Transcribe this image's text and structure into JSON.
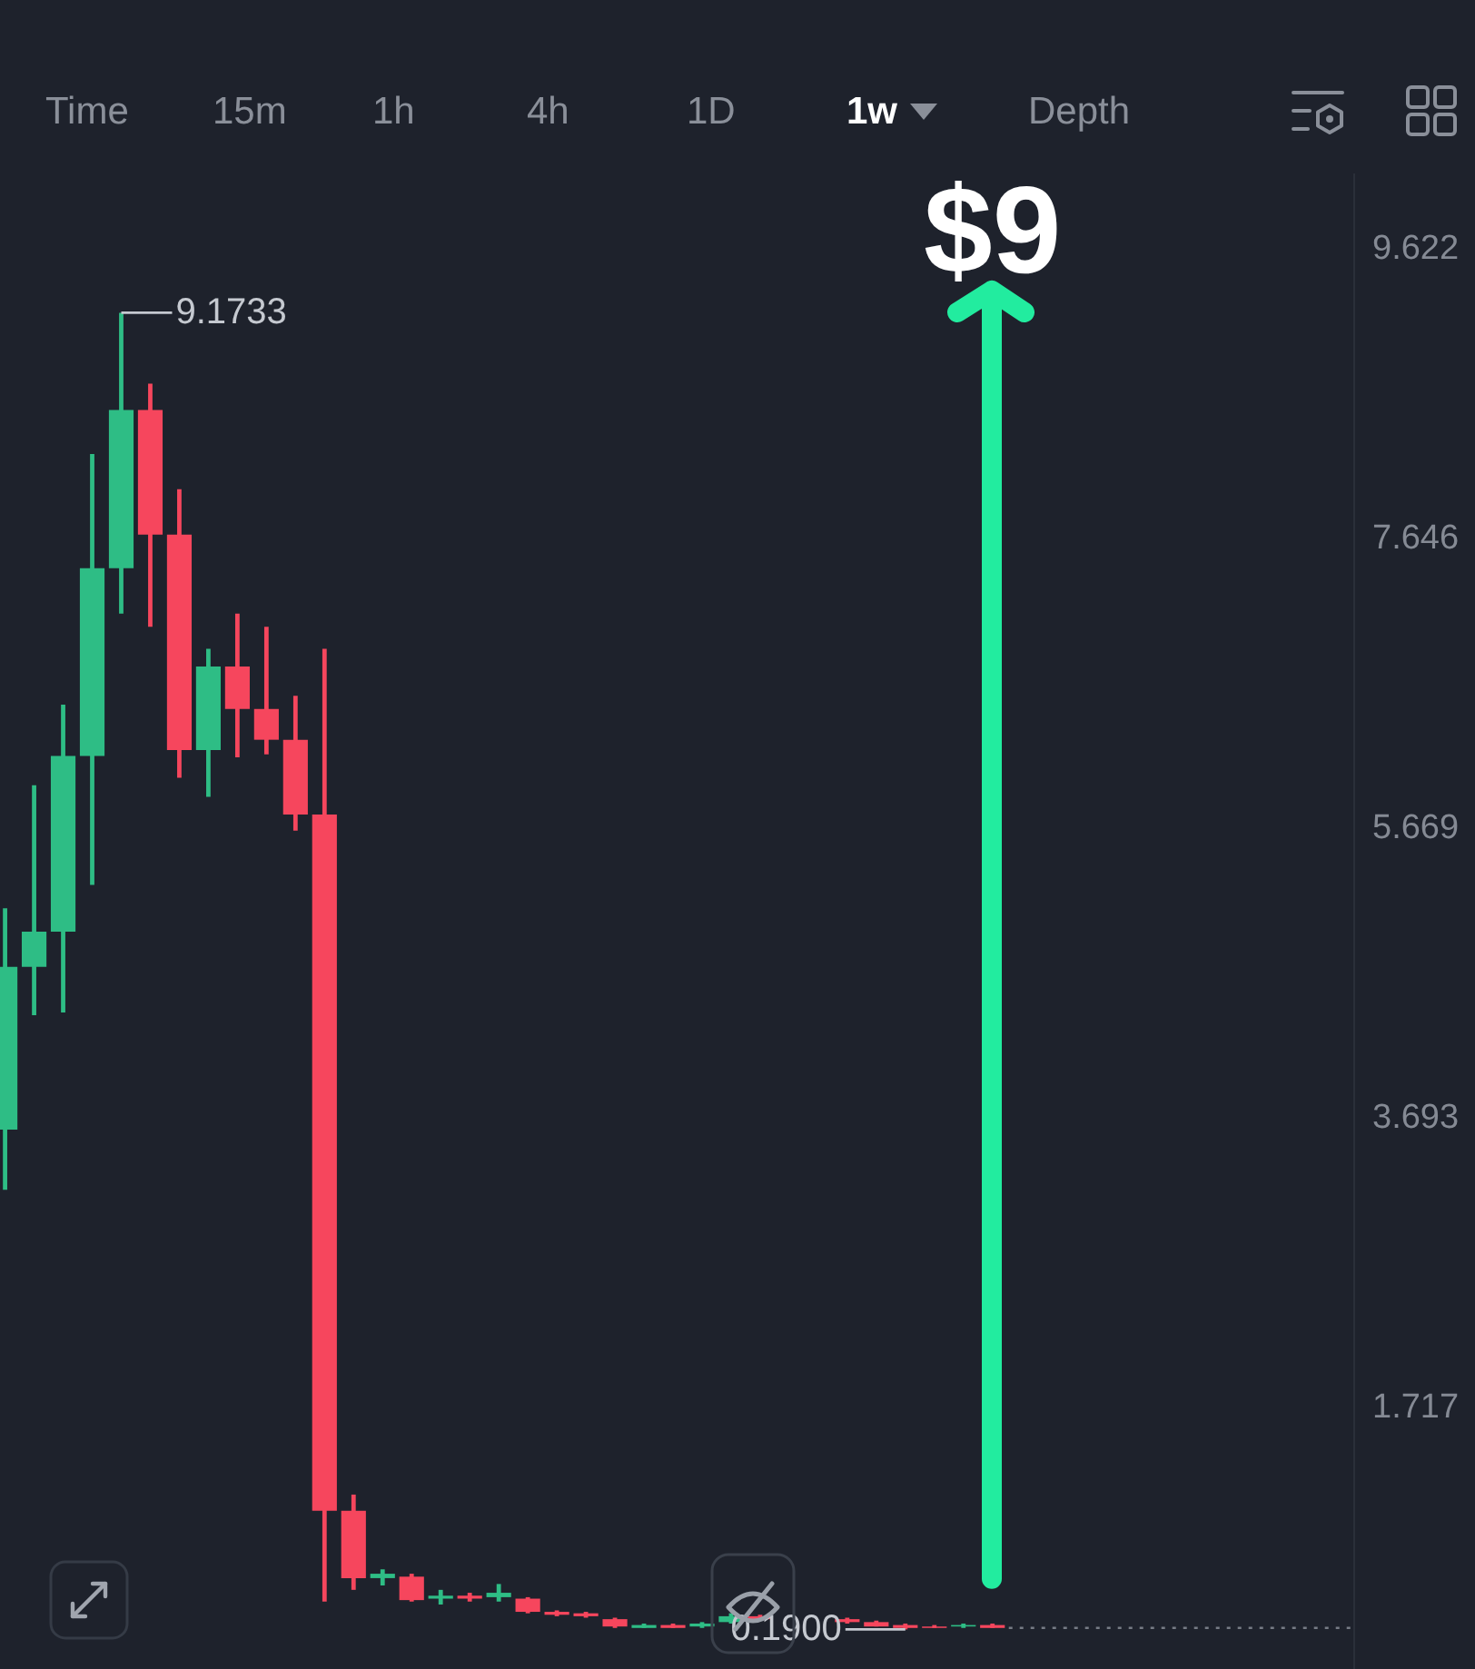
{
  "chart_data": {
    "type": "candlestick",
    "categories": [
      null,
      null,
      null,
      null,
      null,
      null,
      null,
      null,
      null,
      null,
      null,
      null,
      null,
      null,
      null,
      null,
      null,
      null,
      null,
      null,
      null,
      null,
      null,
      null,
      null,
      null,
      null,
      null,
      null,
      null,
      null,
      null,
      null,
      null,
      null,
      null,
      null,
      null,
      null,
      null,
      null,
      null,
      null,
      null,
      null,
      null,
      null
    ],
    "ohlc": [
      [
        3.6,
        5.11,
        3.19,
        4.71
      ],
      [
        4.71,
        5.95,
        4.38,
        4.95
      ],
      [
        4.95,
        6.5,
        4.4,
        6.15
      ],
      [
        6.15,
        8.21,
        5.27,
        7.43
      ],
      [
        7.43,
        9.1733,
        7.12,
        8.51
      ],
      [
        8.51,
        8.69,
        7.03,
        7.66
      ],
      [
        7.66,
        7.97,
        6.0,
        6.19
      ],
      [
        6.19,
        6.88,
        5.87,
        6.76
      ],
      [
        6.76,
        7.12,
        6.14,
        6.47
      ],
      [
        6.47,
        7.03,
        6.16,
        6.26
      ],
      [
        6.26,
        6.56,
        5.64,
        5.75
      ],
      [
        5.75,
        6.88,
        0.38,
        1.0
      ],
      [
        1.0,
        1.11,
        0.46,
        0.54
      ],
      [
        0.54,
        0.6,
        0.49,
        0.57
      ],
      [
        0.55,
        0.57,
        0.38,
        0.39
      ],
      [
        0.4,
        0.46,
        0.36,
        0.42
      ],
      [
        0.42,
        0.44,
        0.38,
        0.4
      ],
      [
        0.41,
        0.5,
        0.38,
        0.44
      ],
      [
        0.4,
        0.41,
        0.3,
        0.31
      ],
      [
        0.31,
        0.32,
        0.28,
        0.29
      ],
      [
        0.3,
        0.31,
        0.27,
        0.28
      ],
      [
        0.26,
        0.27,
        0.2,
        0.21
      ],
      [
        0.2,
        0.23,
        0.2,
        0.22
      ],
      [
        0.22,
        0.23,
        0.2,
        0.2
      ],
      [
        0.21,
        0.24,
        0.2,
        0.23
      ],
      [
        0.24,
        0.3,
        0.23,
        0.28
      ],
      [
        0.28,
        0.29,
        0.25,
        0.26
      ],
      null,
      null,
      [
        0.26,
        0.27,
        0.23,
        0.24
      ],
      [
        0.24,
        0.25,
        0.21,
        0.21
      ],
      [
        0.22,
        0.23,
        0.19,
        0.2
      ],
      [
        0.21,
        0.22,
        0.2,
        0.2
      ],
      [
        0.21,
        0.23,
        0.2,
        0.22
      ],
      [
        0.22,
        0.23,
        0.2,
        0.2
      ],
      null,
      null,
      null,
      null,
      null,
      null,
      null,
      null,
      null,
      null,
      null,
      null
    ],
    "colors": [
      "#2ebd85",
      "#2ebd85",
      "#2ebd85",
      "#2ebd85",
      "#2ebd85",
      "#f6465d",
      "#f6465d",
      "#2ebd85",
      "#f6465d",
      "#f6465d",
      "#f6465d",
      "#f6465d",
      "#f6465d",
      "#2ebd85",
      "#f6465d",
      "#2ebd85",
      "#f6465d",
      "#2ebd85",
      "#f6465d",
      "#f6465d",
      "#f6465d",
      "#f6465d",
      "#2ebd85",
      "#f6465d",
      "#2ebd85",
      "#2ebd85",
      "#f6465d",
      null,
      null,
      "#f6465d",
      "#f6465d",
      "#f6465d",
      "#f6465d",
      "#2ebd85",
      "#f6465d",
      null,
      null,
      null,
      null,
      null,
      null,
      null,
      null,
      null,
      null,
      null,
      null
    ],
    "ylim": [
      -0.08,
      10.13
    ],
    "yticks": [
      9.622,
      7.646,
      5.669,
      3.693,
      1.717
    ],
    "tick_labels": "y",
    "ref_lines": [
      {
        "axis": "y",
        "value": 0.2,
        "color": "#767b85",
        "line_style": "dotted"
      }
    ],
    "annotations": [
      "Time",
      "15m",
      "1h",
      "4h",
      "1D",
      "1w",
      "Depth",
      "$9",
      "9.1733",
      "0.1900"
    ]
  }
}
